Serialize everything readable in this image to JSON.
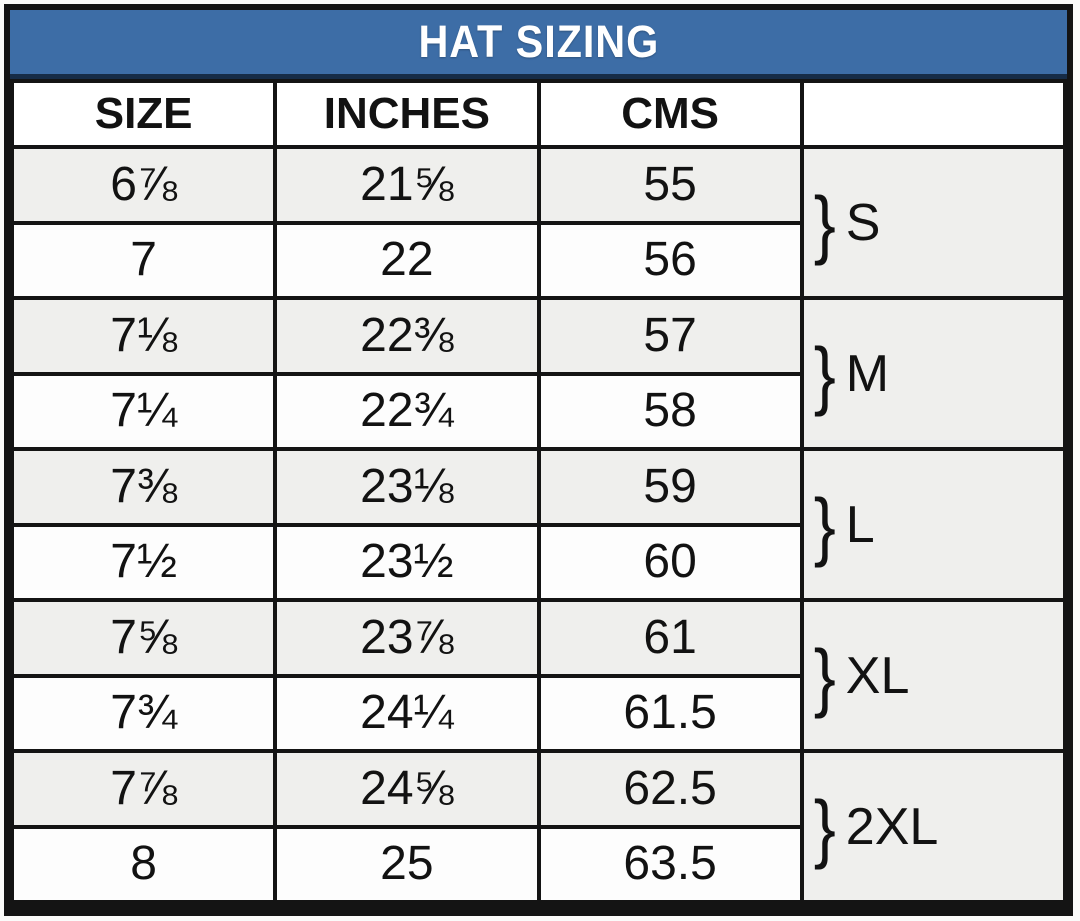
{
  "title": "HAT SIZING",
  "table": {
    "columns": [
      "SIZE",
      "INCHES",
      "CMS",
      ""
    ],
    "groups": [
      {
        "brace": "}",
        "label": "S",
        "rows": [
          [
            "6⅞",
            "21⅝",
            "55"
          ],
          [
            "7",
            "22",
            "56"
          ]
        ]
      },
      {
        "brace": "}",
        "label": "M",
        "rows": [
          [
            "7⅛",
            "22⅜",
            "57"
          ],
          [
            "7¼",
            "22¾",
            "58"
          ]
        ]
      },
      {
        "brace": "}",
        "label": "L",
        "rows": [
          [
            "7⅜",
            "23⅛",
            "59"
          ],
          [
            "7½",
            "23½",
            "60"
          ]
        ]
      },
      {
        "brace": "}",
        "label": "XL",
        "rows": [
          [
            "7⅝",
            "23⅞",
            "61"
          ],
          [
            "7¾",
            "24¼",
            "61.5"
          ]
        ]
      },
      {
        "brace": "}",
        "label": "2XL",
        "rows": [
          [
            "7⅞",
            "24⅝",
            "62.5"
          ],
          [
            "8",
            "25",
            "63.5"
          ]
        ]
      }
    ]
  },
  "colors": {
    "title_bg": "#3d6da6",
    "title_text": "#ffffff",
    "title_underline": "#162c47",
    "border": "#141414",
    "row_shade_bg": "#efefed",
    "row_plain_bg": "#fdfdfd"
  },
  "chart_data": {
    "type": "table",
    "title": "HAT SIZING",
    "columns": [
      "SIZE",
      "INCHES",
      "CMS",
      ""
    ],
    "rows": [
      [
        "6⅞",
        "21⅝",
        "55",
        "S"
      ],
      [
        "7",
        "22",
        "56",
        "S"
      ],
      [
        "7⅛",
        "22⅜",
        "57",
        "M"
      ],
      [
        "7¼",
        "22¾",
        "58",
        "M"
      ],
      [
        "7⅜",
        "23⅛",
        "59",
        "L"
      ],
      [
        "7½",
        "23½",
        "60",
        "L"
      ],
      [
        "7⅝",
        "23⅞",
        "61",
        "XL"
      ],
      [
        "7¾",
        "24¼",
        "61.5",
        "XL"
      ],
      [
        "7⅞",
        "24⅝",
        "62.5",
        "2XL"
      ],
      [
        "8",
        "25",
        "63.5",
        "2XL"
      ]
    ],
    "layout_hints": {
      "group_column_rowspan": 2,
      "row_shading": "alternating, first data row shaded",
      "title_position": "top band, blue background"
    }
  }
}
